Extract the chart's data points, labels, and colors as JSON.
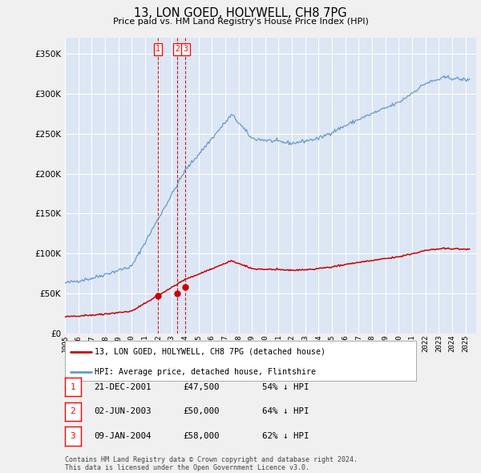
{
  "title": "13, LON GOED, HOLYWELL, CH8 7PG",
  "subtitle": "Price paid vs. HM Land Registry's House Price Index (HPI)",
  "xlim_start": 1995.0,
  "xlim_end": 2025.8,
  "ylim": [
    0,
    370000
  ],
  "yticks": [
    0,
    50000,
    100000,
    150000,
    200000,
    250000,
    300000,
    350000
  ],
  "sale_dates_num": [
    2001.97,
    2003.42,
    2004.03
  ],
  "sale_prices": [
    47500,
    50000,
    58000
  ],
  "sale_labels": [
    "1",
    "2",
    "3"
  ],
  "legend_red": "13, LON GOED, HOLYWELL, CH8 7PG (detached house)",
  "legend_blue": "HPI: Average price, detached house, Flintshire",
  "table_rows": [
    [
      "1",
      "21-DEC-2001",
      "£47,500",
      "54% ↓ HPI"
    ],
    [
      "2",
      "02-JUN-2003",
      "£50,000",
      "64% ↓ HPI"
    ],
    [
      "3",
      "09-JAN-2004",
      "£58,000",
      "62% ↓ HPI"
    ]
  ],
  "footer": "Contains HM Land Registry data © Crown copyright and database right 2024.\nThis data is licensed under the Open Government Licence v3.0.",
  "fig_bg_color": "#f0f0f0",
  "plot_bg_color": "#dce6f5",
  "grid_color": "#ffffff",
  "red_line_color": "#cc0000",
  "blue_line_color": "#6699cc",
  "vline_color": "#cc0000"
}
